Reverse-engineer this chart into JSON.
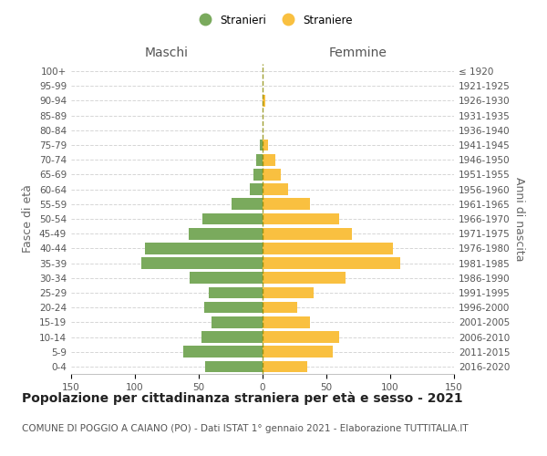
{
  "age_groups": [
    "0-4",
    "5-9",
    "10-14",
    "15-19",
    "20-24",
    "25-29",
    "30-34",
    "35-39",
    "40-44",
    "45-49",
    "50-54",
    "55-59",
    "60-64",
    "65-69",
    "70-74",
    "75-79",
    "80-84",
    "85-89",
    "90-94",
    "95-99",
    "100+"
  ],
  "birth_years": [
    "2016-2020",
    "2011-2015",
    "2006-2010",
    "2001-2005",
    "1996-2000",
    "1991-1995",
    "1986-1990",
    "1981-1985",
    "1976-1980",
    "1971-1975",
    "1966-1970",
    "1961-1965",
    "1956-1960",
    "1951-1955",
    "1946-1950",
    "1941-1945",
    "1936-1940",
    "1931-1935",
    "1926-1930",
    "1921-1925",
    "≤ 1920"
  ],
  "males": [
    45,
    62,
    48,
    40,
    46,
    42,
    57,
    95,
    92,
    58,
    47,
    24,
    10,
    7,
    5,
    2,
    0,
    0,
    0,
    0,
    0
  ],
  "females": [
    35,
    55,
    60,
    37,
    27,
    40,
    65,
    108,
    102,
    70,
    60,
    37,
    20,
    14,
    10,
    4,
    0,
    0,
    2,
    0,
    0
  ],
  "male_color": "#7aaa5d",
  "female_color": "#f9c040",
  "background_color": "#ffffff",
  "grid_color": "#cccccc",
  "title": "Popolazione per cittadinanza straniera per età e sesso - 2021",
  "subtitle": "COMUNE DI POGGIO A CAIANO (PO) - Dati ISTAT 1° gennaio 2021 - Elaborazione TUTTITALIA.IT",
  "ylabel_left": "Fasce di età",
  "ylabel_right": "Anni di nascita",
  "xlabel_left": "Maschi",
  "xlabel_right": "Femmine",
  "legend_male": "Stranieri",
  "legend_female": "Straniere",
  "xlim": 150,
  "title_fontsize": 10,
  "subtitle_fontsize": 7.5,
  "tick_fontsize": 7.5,
  "label_fontsize": 9,
  "header_fontsize": 10
}
